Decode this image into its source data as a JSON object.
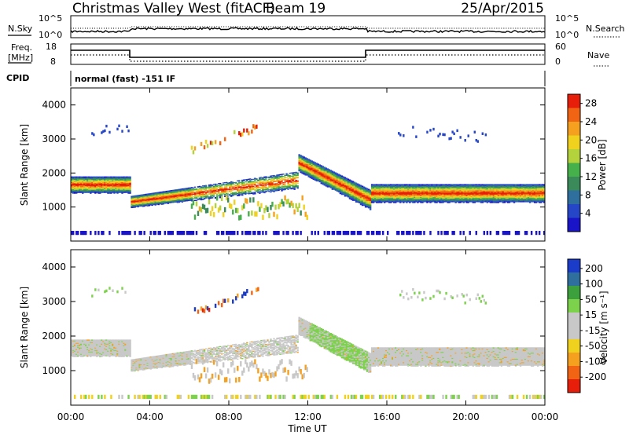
{
  "header": {
    "station": "Christmas Valley West (fitACF)",
    "beam": "Beam 19",
    "date": "25/Apr/2015"
  },
  "noise_panel": {
    "left_label": "N.Sky",
    "right_label": "N.Search",
    "left_ticks": [
      "10^5",
      "10^0"
    ],
    "right_ticks": [
      "10^5",
      "10^0"
    ]
  },
  "freq_panel": {
    "left_label_1": "Freq.",
    "left_label_2": "[MHz]",
    "right_label": "Nave",
    "left_ticks": [
      "18",
      "8"
    ],
    "right_ticks": [
      "60",
      "0"
    ]
  },
  "cpid": {
    "label": "CPID",
    "text": "normal (fast) -151 IF"
  },
  "chart_data": [
    {
      "type": "heatmap",
      "name": "",
      "ylabel": "Slant Range [km]",
      "ylim": [
        0,
        4500
      ],
      "xlim_hours": [
        0,
        24
      ],
      "yticks": [
        "1000",
        "2000",
        "3000",
        "4000"
      ],
      "colorbar": {
        "label": "Power [dB]",
        "ticks": [
          "4",
          "8",
          "12",
          "16",
          "20",
          "24",
          "28"
        ],
        "range": [
          0,
          30
        ]
      }
    },
    {
      "type": "heatmap",
      "name": "",
      "ylabel": "Slant Range [km]",
      "ylim": [
        0,
        4500
      ],
      "xlim_hours": [
        0,
        24
      ],
      "yticks": [
        "1000",
        "2000",
        "3000",
        "4000"
      ],
      "colorbar": {
        "label": "Velocity [m s⁻¹]",
        "ticks": [
          "200",
          "100",
          "50",
          "15",
          "-15",
          "-50",
          "-100",
          "-200"
        ]
      }
    }
  ],
  "xaxis": {
    "label": "Time UT",
    "ticks": [
      "00:00",
      "04:00",
      "08:00",
      "12:00",
      "16:00",
      "20:00",
      "00:00"
    ]
  },
  "colors": {
    "power_scale": [
      "#1a14c8",
      "#2646c8",
      "#2e6f9e",
      "#3a8a5a",
      "#46b04a",
      "#b4d23c",
      "#f0d21e",
      "#f5a01e",
      "#f06414",
      "#e61e0a"
    ],
    "velocity_scale": [
      "#1a3cc8",
      "#2e6f9e",
      "#3ca03c",
      "#7cd24a",
      "#c8c8c8",
      "#c8c8c8",
      "#f0d21e",
      "#f5a01e",
      "#f06414",
      "#e61e0a"
    ]
  }
}
